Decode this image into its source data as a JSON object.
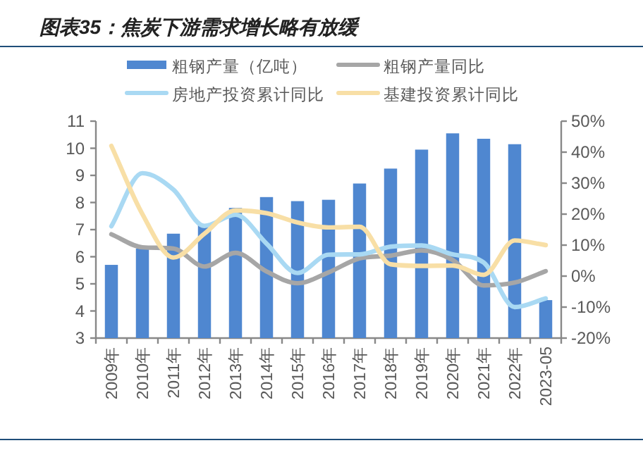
{
  "chart_data": {
    "type": "bar",
    "title": "图表35：焦炭下游需求增长略有放缓",
    "categories": [
      "2009年",
      "2010年",
      "2011年",
      "2012年",
      "2013年",
      "2014年",
      "2015年",
      "2016年",
      "2017年",
      "2018年",
      "2019年",
      "2020年",
      "2021年",
      "2022年",
      "2023-05"
    ],
    "series": [
      {
        "name": "粗钢产量（亿吨）",
        "color": "#4f87d0",
        "values": [
          5.7,
          6.3,
          6.85,
          7.2,
          7.8,
          8.2,
          8.05,
          8.1,
          8.7,
          9.25,
          9.95,
          10.55,
          10.35,
          10.15,
          4.4
        ]
      },
      {
        "name": "粗钢产量同比",
        "type": "line",
        "axis": "y2",
        "color": "#a6a6a6",
        "values": [
          13.5,
          9.3,
          8.9,
          3.1,
          7.5,
          1.5,
          -2.3,
          1.2,
          5.7,
          6.6,
          8.3,
          5.2,
          -3.0,
          -2.1,
          1.6
        ]
      },
      {
        "name": "房地产投资累计同比",
        "type": "line",
        "axis": "y2",
        "color": "#a9d9f3",
        "values": [
          16.1,
          33.2,
          27.9,
          16.2,
          19.8,
          10.5,
          1.0,
          6.9,
          7.0,
          9.5,
          9.9,
          7.0,
          4.4,
          -10.0,
          -7.2
        ]
      },
      {
        "name": "基建投资累计同比",
        "type": "line",
        "axis": "y2",
        "color": "#f8dfa6",
        "values": [
          42,
          20,
          6,
          13.7,
          21.2,
          20.3,
          17.3,
          15.7,
          15.9,
          3.8,
          3.3,
          3.4,
          0.4,
          11.5,
          10.0
        ]
      }
    ],
    "ylim": [
      3,
      11
    ],
    "yticks": [
      3,
      4,
      5,
      6,
      7,
      8,
      9,
      10,
      11
    ],
    "y2lim": [
      -20,
      50
    ],
    "y2ticks": [
      {
        "value": -20,
        "label": "-20%"
      },
      {
        "value": -10,
        "label": "-10%"
      },
      {
        "value": 0,
        "label": "0%"
      },
      {
        "value": 10,
        "label": "10%"
      },
      {
        "value": 20,
        "label": "20%"
      },
      {
        "value": 30,
        "label": "30%"
      },
      {
        "value": 40,
        "label": "40%"
      },
      {
        "value": 50,
        "label": "50%"
      }
    ],
    "grid": false,
    "legend": "top",
    "marker": "none",
    "line_style": "solid"
  }
}
